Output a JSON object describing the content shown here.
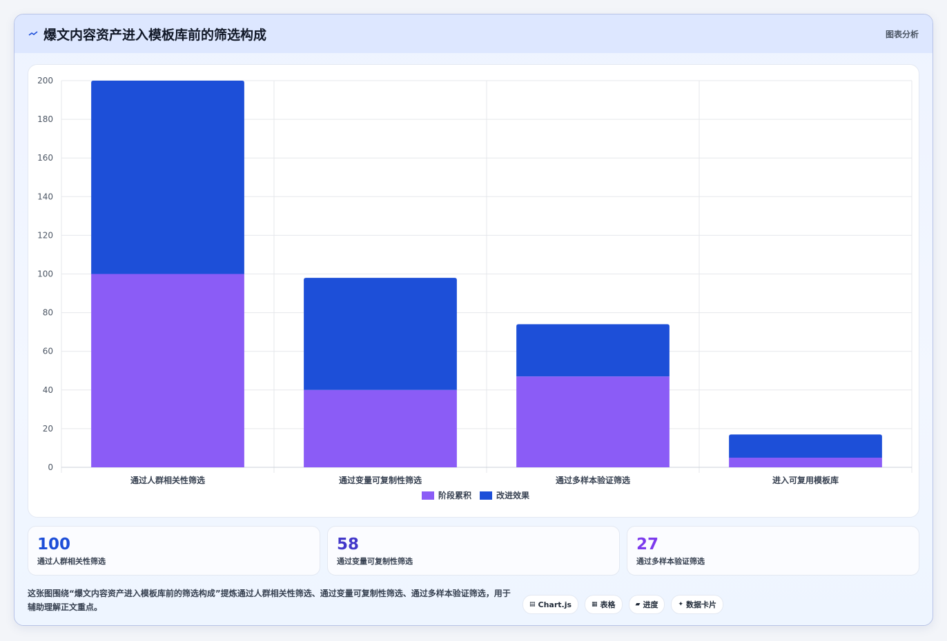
{
  "header": {
    "title": "爆文内容资产进入模板库前的筛选构成",
    "right_label": "图表分析"
  },
  "colors": {
    "stage": "#8b5cf6",
    "effect": "#1d4fd8",
    "stat1": "#1d4ed8",
    "stat2": "#4338ca",
    "stat3": "#7c3aed"
  },
  "chart_data": {
    "type": "bar",
    "stacked": true,
    "categories": [
      "通过人群相关性筛选",
      "通过变量可复制性筛选",
      "通过多样本验证筛选",
      "进入可复用模板库"
    ],
    "series": [
      {
        "name": "阶段累积",
        "values": [
          100,
          40,
          47,
          5
        ]
      },
      {
        "name": "改进效果",
        "values": [
          100,
          58,
          27,
          12
        ]
      }
    ],
    "ylim": [
      0,
      200
    ],
    "yticks": [
      0,
      20,
      40,
      60,
      80,
      100,
      120,
      140,
      160,
      180,
      200
    ],
    "grid": true,
    "legend": "bottom"
  },
  "stats": [
    {
      "value": "100",
      "label": "通过人群相关性筛选"
    },
    {
      "value": "58",
      "label": "通过变量可复制性筛选"
    },
    {
      "value": "27",
      "label": "通过多样本验证筛选"
    }
  ],
  "footer": {
    "text": "这张图围绕“爆文内容资产进入模板库前的筛选构成”提炼通过人群相关性筛选、通过变量可复制性筛选、通过多样本验证筛选，用于辅助理解正文重点。"
  },
  "chips": [
    {
      "icon": "chart-icon",
      "glyph": "▤",
      "label": "Chart.js"
    },
    {
      "icon": "table-icon",
      "glyph": "▦",
      "label": "表格"
    },
    {
      "icon": "progress-icon",
      "glyph": "▰",
      "label": "进度"
    },
    {
      "icon": "sparkle-icon",
      "glyph": "✦",
      "label": "数据卡片"
    }
  ]
}
